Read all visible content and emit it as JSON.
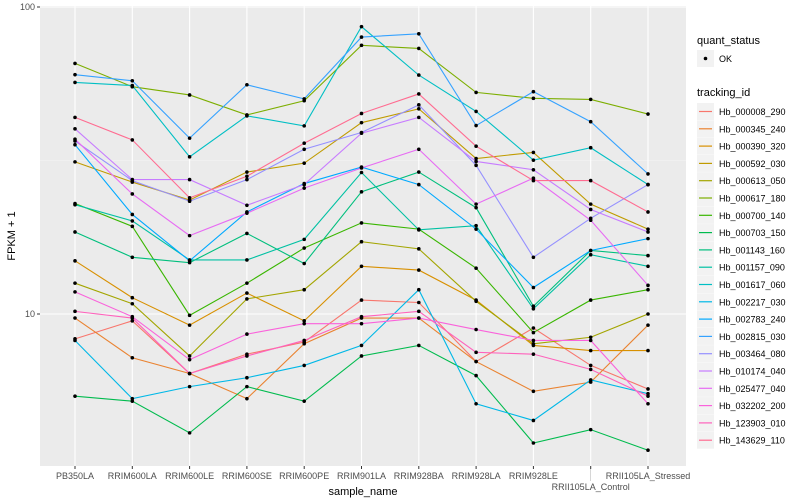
{
  "chart_data": {
    "type": "line",
    "title": "",
    "xlabel": "sample_name",
    "ylabel": "FPKM + 1",
    "y_scale": "log10",
    "ylim": [
      3.3,
      100
    ],
    "y_ticks": [
      10,
      100
    ],
    "y_tick_labels": [
      "10",
      "100"
    ],
    "grid": true,
    "categories": [
      "PB350LA",
      "RRIM600LA",
      "RRIM600LE",
      "RRIM600SE",
      "RRIM600PE",
      "RRIM901LA",
      "RRIM928BA",
      "RRIM928LA",
      "RRIM928LE",
      "RRII105LA_Control",
      "RRII105LA_Stressed"
    ],
    "category_labels": [
      "PB350LA",
      "RRIM600LA",
      "RRIM600LE",
      "RRIM600SE",
      "RRIM600PE",
      "RRIM901LA",
      "RRIM928BA",
      "RRIM928LA",
      "RRIM928LE",
      "RRII105LA_Control",
      "RRII105LA_Stressed"
    ],
    "legend_position": "right",
    "legend_shape": {
      "title": "quant_status",
      "entries": [
        "OK"
      ]
    },
    "legend_color_title": "tracking_id",
    "series": [
      {
        "name": "Hb_000008_290",
        "color": "#F8766D",
        "values": [
          8.3,
          9.5,
          6.4,
          7.4,
          8.1,
          11.1,
          10.9,
          7.0,
          9.0,
          6.8,
          5.7
        ]
      },
      {
        "name": "Hb_000345_240",
        "color": "#EA8331",
        "values": [
          9.7,
          7.2,
          6.4,
          5.3,
          8.0,
          9.7,
          9.7,
          7.0,
          5.6,
          6.0,
          9.2
        ]
      },
      {
        "name": "Hb_000390_320",
        "color": "#D89000",
        "values": [
          14.9,
          11.3,
          9.2,
          11.7,
          9.5,
          14.3,
          13.9,
          11.1,
          7.9,
          7.6,
          7.6
        ]
      },
      {
        "name": "Hb_000592_030",
        "color": "#C09B00",
        "values": [
          31.3,
          26.9,
          23.5,
          29.0,
          31.0,
          42.0,
          46.6,
          32.1,
          33.6,
          22.8,
          18.9
        ]
      },
      {
        "name": "Hb_000613_050",
        "color": "#A3A500",
        "values": [
          12.6,
          10.8,
          7.3,
          11.2,
          12.0,
          17.2,
          16.3,
          11.0,
          8.0,
          8.4,
          10.0
        ]
      },
      {
        "name": "Hb_000617_180",
        "color": "#7CAE00",
        "values": [
          65.5,
          55.0,
          51.7,
          44.5,
          49.5,
          75.0,
          73.3,
          52.7,
          50.4,
          50.0,
          44.8
        ]
      },
      {
        "name": "Hb_000700_140",
        "color": "#39B600",
        "values": [
          22.9,
          19.3,
          9.9,
          12.6,
          16.4,
          19.8,
          18.9,
          14.1,
          8.7,
          11.1,
          12.0
        ]
      },
      {
        "name": "Hb_000703_150",
        "color": "#00BB4E",
        "values": [
          5.4,
          5.2,
          4.1,
          5.8,
          5.2,
          7.3,
          7.9,
          6.3,
          3.8,
          4.2,
          3.6
        ]
      },
      {
        "name": "Hb_001143_160",
        "color": "#00BF7D",
        "values": [
          18.5,
          15.3,
          14.7,
          18.3,
          14.6,
          25.0,
          29.0,
          22.2,
          10.6,
          16.1,
          15.5
        ]
      },
      {
        "name": "Hb_001157_090",
        "color": "#00C1A3",
        "values": [
          22.7,
          20.1,
          15.0,
          15.0,
          17.5,
          28.9,
          18.8,
          19.4,
          10.4,
          15.6,
          14.3
        ]
      },
      {
        "name": "Hb_001617_060",
        "color": "#00BFC4",
        "values": [
          56.8,
          55.5,
          32.5,
          44.2,
          41.0,
          86.3,
          60.0,
          45.7,
          31.7,
          34.8,
          26.4
        ]
      },
      {
        "name": "Hb_002217_030",
        "color": "#00B8E7",
        "values": [
          8.2,
          5.3,
          5.8,
          6.2,
          6.8,
          7.9,
          12.0,
          5.1,
          4.5,
          6.1,
          5.5
        ]
      },
      {
        "name": "Hb_002783_240",
        "color": "#00A9FF",
        "values": [
          35.6,
          21.1,
          14.9,
          21.5,
          26.6,
          30.1,
          26.4,
          18.9,
          12.2,
          16.1,
          17.6
        ]
      },
      {
        "name": "Hb_002815_030",
        "color": "#35A2FF",
        "values": [
          60.2,
          57.5,
          37.4,
          55.8,
          50.2,
          79.8,
          81.8,
          41.1,
          53.0,
          42.3,
          28.6
        ]
      },
      {
        "name": "Hb_003464_080",
        "color": "#9590FF",
        "values": [
          36.6,
          27.2,
          23.3,
          27.4,
          34.4,
          39.0,
          48.0,
          30.5,
          15.3,
          20.5,
          26.4
        ]
      },
      {
        "name": "Hb_010174_040",
        "color": "#C77CFF",
        "values": [
          40.1,
          27.4,
          27.4,
          22.6,
          26.4,
          38.8,
          43.7,
          31.4,
          29.5,
          21.9,
          18.5
        ]
      },
      {
        "name": "Hb_025477_040",
        "color": "#E76BF3",
        "values": [
          37.1,
          24.6,
          18.0,
          21.3,
          25.7,
          29.9,
          34.4,
          22.8,
          27.7,
          20.2,
          12.4
        ]
      },
      {
        "name": "Hb_032202_200",
        "color": "#FA62DB",
        "values": [
          11.8,
          9.8,
          7.1,
          8.6,
          9.3,
          9.3,
          9.7,
          8.9,
          8.2,
          8.2,
          5.1
        ]
      },
      {
        "name": "Hb_123903_010",
        "color": "#FF62BC",
        "values": [
          10.2,
          9.7,
          6.4,
          7.3,
          8.2,
          9.8,
          10.2,
          7.5,
          7.4,
          6.6,
          5.4
        ]
      },
      {
        "name": "Hb_143629_110",
        "color": "#FF6C91",
        "values": [
          43.7,
          36.9,
          23.9,
          28.1,
          36.0,
          45.0,
          52.1,
          35.2,
          27.2,
          27.2,
          21.5
        ]
      }
    ]
  }
}
